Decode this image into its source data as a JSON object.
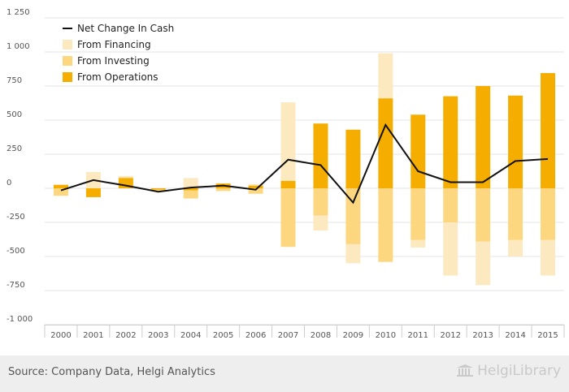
{
  "chart_data": {
    "type": "bar",
    "stacked": true,
    "categories": [
      "2000",
      "2001",
      "2002",
      "2003",
      "2004",
      "2005",
      "2006",
      "2007",
      "2008",
      "2009",
      "2010",
      "2011",
      "2012",
      "2013",
      "2014",
      "2015"
    ],
    "series": [
      {
        "name": "From Operations",
        "kind": "bar",
        "color": "#f5ad00",
        "values": [
          25,
          -65,
          75,
          -10,
          -15,
          35,
          20,
          55,
          475,
          430,
          660,
          540,
          675,
          750,
          680,
          845
        ]
      },
      {
        "name": "From Investing",
        "kind": "bar",
        "color": "#fcd77f",
        "values": [
          -55,
          0,
          5,
          -10,
          -60,
          -20,
          -40,
          -430,
          -200,
          -410,
          -540,
          -380,
          -250,
          -390,
          -380,
          -380
        ]
      },
      {
        "name": "From Financing",
        "kind": "bar",
        "color": "#fde9c0",
        "values": [
          5,
          120,
          10,
          0,
          75,
          0,
          10,
          575,
          -110,
          -140,
          330,
          -55,
          -390,
          -320,
          -120,
          -260
        ]
      },
      {
        "name": "Net Change In Cash",
        "kind": "line",
        "color": "#111111",
        "values": [
          -15,
          60,
          20,
          -25,
          5,
          20,
          -10,
          210,
          170,
          -105,
          465,
          125,
          45,
          45,
          200,
          215
        ]
      }
    ],
    "ylim": [
      -1000,
      1250
    ],
    "yticks": [
      -1000,
      -750,
      -500,
      -250,
      0,
      250,
      500,
      750,
      1000,
      1250
    ],
    "ytick_labels": [
      "-1 000",
      "-750",
      "-500",
      "-250",
      "0",
      "250",
      "500",
      "750",
      "1 000",
      "1 250"
    ],
    "grid": true,
    "legend_position": "top-left",
    "legend_order": [
      "Net Change In Cash",
      "From Financing",
      "From Investing",
      "From Operations"
    ],
    "title": "",
    "xlabel": "",
    "ylabel": ""
  },
  "footer": {
    "source": "Source: Company Data, Helgi Analytics",
    "logo": "HelgiLibrary"
  }
}
